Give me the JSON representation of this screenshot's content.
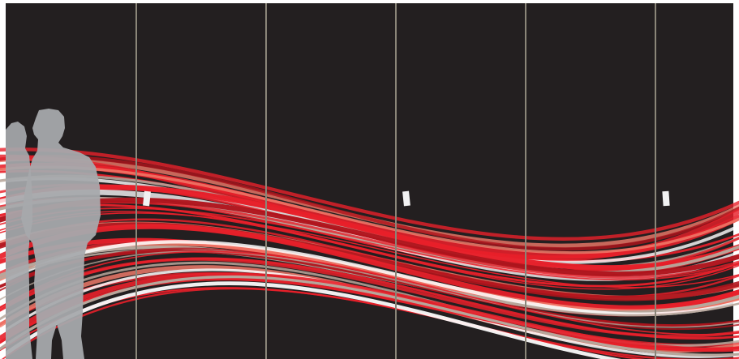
{
  "scene": {
    "subject": "closet-doors-wave-mural",
    "colors": {
      "frame": "#ffffff",
      "wall": "#231f20",
      "divider": "#8a8578",
      "handle": "#f2f2f2",
      "silhouette": "#a7a9ac",
      "wave_red": "#e8202a",
      "wave_dark_red": "#b0141c",
      "wave_taupe": "#b7a69b",
      "wave_white": "#ffffff",
      "wave_salmon": "#f07a6a"
    },
    "icons": [
      "person-silhouette-icon",
      "door-handle-icon"
    ]
  }
}
